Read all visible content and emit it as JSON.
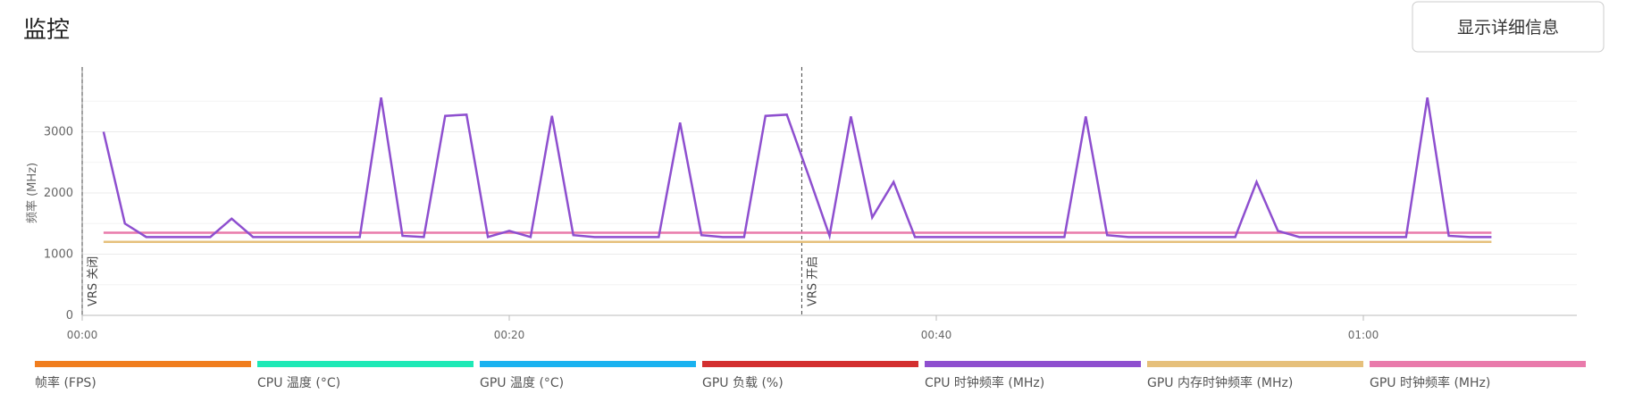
{
  "header": {
    "title": "监控",
    "button": "显示详细信息"
  },
  "chart_data": {
    "type": "line",
    "ylabel": "频率 (MHz)",
    "x": [
      1,
      2,
      3,
      4,
      5,
      6,
      7,
      8,
      9,
      10,
      11,
      12,
      13,
      14,
      15,
      16,
      17,
      18,
      19,
      20,
      21,
      22,
      23,
      24,
      25,
      26,
      27,
      28,
      29,
      30,
      31,
      32,
      33,
      34,
      35,
      36,
      37,
      38,
      39,
      40,
      41,
      42,
      43,
      44,
      45,
      46,
      47,
      48,
      49,
      50,
      51,
      52,
      53,
      54,
      55,
      56,
      57,
      58,
      59,
      60,
      61,
      62,
      63,
      64,
      65,
      66
    ],
    "xlim": [
      0,
      70
    ],
    "xticks": [
      {
        "value": 0,
        "label": "00:00"
      },
      {
        "value": 20,
        "label": "00:20"
      },
      {
        "value": 40,
        "label": "00:40"
      },
      {
        "value": 60,
        "label": "01:00"
      }
    ],
    "ylim": [
      0,
      4000
    ],
    "yticks": [
      0,
      1000,
      2000,
      3000
    ],
    "yminorticks": [
      500,
      1500,
      2500,
      3500
    ],
    "grid": true,
    "annotations": [
      {
        "x": 0,
        "label": "VRS 关闭"
      },
      {
        "x": 33.7,
        "label": "VRS 开启"
      }
    ],
    "series": [
      {
        "name": "帧率 (FPS)",
        "color": "#f07d1e"
      },
      {
        "name": "CPU 温度 (°C)",
        "color": "#1de9b6"
      },
      {
        "name": "GPU 温度 (°C)",
        "color": "#1ab2f0"
      },
      {
        "name": "GPU 负载 (%)",
        "color": "#d32f2f"
      },
      {
        "name": "CPU 时钟频率 (MHz)",
        "color": "#8e4fcf",
        "values": [
          3000,
          1500,
          1280,
          1280,
          1280,
          1280,
          1580,
          1280,
          1280,
          1280,
          1280,
          1280,
          1280,
          3560,
          1300,
          1280,
          3260,
          3280,
          1280,
          1380,
          1280,
          3260,
          1310,
          1280,
          1280,
          1280,
          1280,
          3150,
          1310,
          1280,
          1280,
          3260,
          3280,
          2300,
          1300,
          3250,
          1600,
          2180,
          1280,
          1280,
          1280,
          1280,
          1280,
          1280,
          1280,
          1280,
          3250,
          1310,
          1280,
          1280,
          1280,
          1280,
          1280,
          1280,
          2180,
          1380,
          1280,
          1280,
          1280,
          1280,
          1280,
          1280,
          3560,
          1300,
          1280,
          1280
        ]
      },
      {
        "name": "GPU 内存时钟频率 (MHz)",
        "color": "#e6c07b",
        "values": [
          1200,
          1200,
          1200,
          1200,
          1200,
          1200,
          1200,
          1200,
          1200,
          1200,
          1200,
          1200,
          1200,
          1200,
          1200,
          1200,
          1200,
          1200,
          1200,
          1200,
          1200,
          1200,
          1200,
          1200,
          1200,
          1200,
          1200,
          1200,
          1200,
          1200,
          1200,
          1200,
          1200,
          1200,
          1200,
          1200,
          1200,
          1200,
          1200,
          1200,
          1200,
          1200,
          1200,
          1200,
          1200,
          1200,
          1200,
          1200,
          1200,
          1200,
          1200,
          1200,
          1200,
          1200,
          1200,
          1200,
          1200,
          1200,
          1200,
          1200,
          1200,
          1200,
          1200,
          1200,
          1200,
          1200
        ]
      },
      {
        "name": "GPU 时钟频率 (MHz)",
        "color": "#e97aab",
        "values": [
          1350,
          1350,
          1350,
          1350,
          1350,
          1350,
          1350,
          1350,
          1350,
          1350,
          1350,
          1350,
          1350,
          1350,
          1350,
          1350,
          1350,
          1350,
          1350,
          1350,
          1350,
          1350,
          1350,
          1350,
          1350,
          1350,
          1350,
          1350,
          1350,
          1350,
          1350,
          1350,
          1350,
          1350,
          1350,
          1350,
          1350,
          1350,
          1350,
          1350,
          1350,
          1350,
          1350,
          1350,
          1350,
          1350,
          1350,
          1350,
          1350,
          1350,
          1350,
          1350,
          1350,
          1350,
          1350,
          1350,
          1350,
          1350,
          1350,
          1350,
          1350,
          1350,
          1350,
          1350,
          1350,
          1350
        ]
      }
    ]
  }
}
